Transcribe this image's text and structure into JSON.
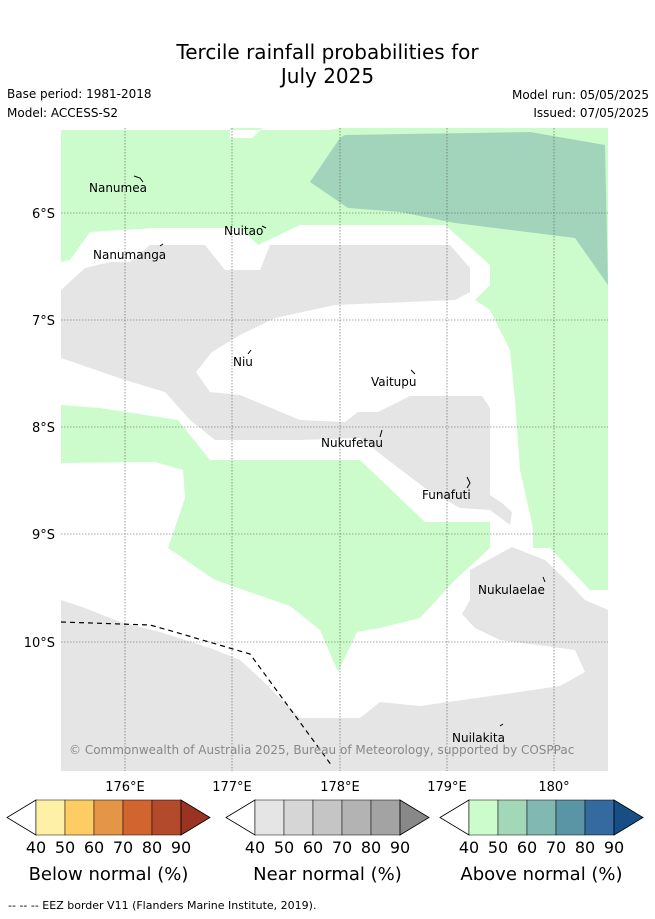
{
  "title_line1": "Tercile rainfall probabilities for",
  "title_line2": "July 2025",
  "base_period": "Base period: 1981-2018",
  "model": "Model: ACCESS-S2",
  "model_run": "Model run: 05/05/2025",
  "issued": "Issued: 07/05/2025",
  "lon_ticks": [
    "176°E",
    "177°E",
    "178°E",
    "179°E",
    "180°"
  ],
  "lat_ticks": [
    "6°S",
    "7°S",
    "8°S",
    "9°S",
    "10°S"
  ],
  "places": [
    {
      "name": "Nanumea",
      "icon": "island-icon"
    },
    {
      "name": "Nuitao",
      "icon": "island-icon"
    },
    {
      "name": "Nanumanga",
      "icon": "island-icon"
    },
    {
      "name": "Niu",
      "icon": "island-icon"
    },
    {
      "name": "Vaitupu",
      "icon": "island-icon"
    },
    {
      "name": "Nukufetau",
      "icon": "island-icon"
    },
    {
      "name": "Funafuti",
      "icon": "island-icon"
    },
    {
      "name": "Nukulaelae",
      "icon": "island-icon"
    },
    {
      "name": "Nuilakita",
      "icon": "island-icon"
    }
  ],
  "copyright": "© Commonwealth of Australia 2025, Bureau of Meteorology, supported by COSPPac",
  "legends": [
    {
      "title": "Below normal (%)",
      "ticks": [
        "40",
        "50",
        "60",
        "70",
        "80",
        "90"
      ],
      "colors": [
        "#ffffff",
        "#fff0a8",
        "#fdcd64",
        "#e49545",
        "#d1642f",
        "#b24a2b",
        "#9a3322"
      ]
    },
    {
      "title": "Near normal (%)",
      "ticks": [
        "40",
        "50",
        "60",
        "70",
        "80",
        "90"
      ],
      "colors": [
        "#ffffff",
        "#e5e5e5",
        "#d6d6d6",
        "#c5c5c5",
        "#b3b3b3",
        "#a3a3a3",
        "#888888"
      ]
    },
    {
      "title": "Above normal (%)",
      "ticks": [
        "40",
        "50",
        "60",
        "70",
        "80",
        "90"
      ],
      "colors": [
        "#ffffff",
        "#ccfccc",
        "#a2d8b8",
        "#82b8b2",
        "#5a95a5",
        "#346a9f",
        "#164f86"
      ]
    }
  ],
  "footer": "-- -- -- EEZ border V11 (Flanders Marine Institute, 2019).",
  "zone_colors": {
    "near": "#e5e5e5",
    "above40": "#ccfccc",
    "above50": "#a2d4bc"
  }
}
